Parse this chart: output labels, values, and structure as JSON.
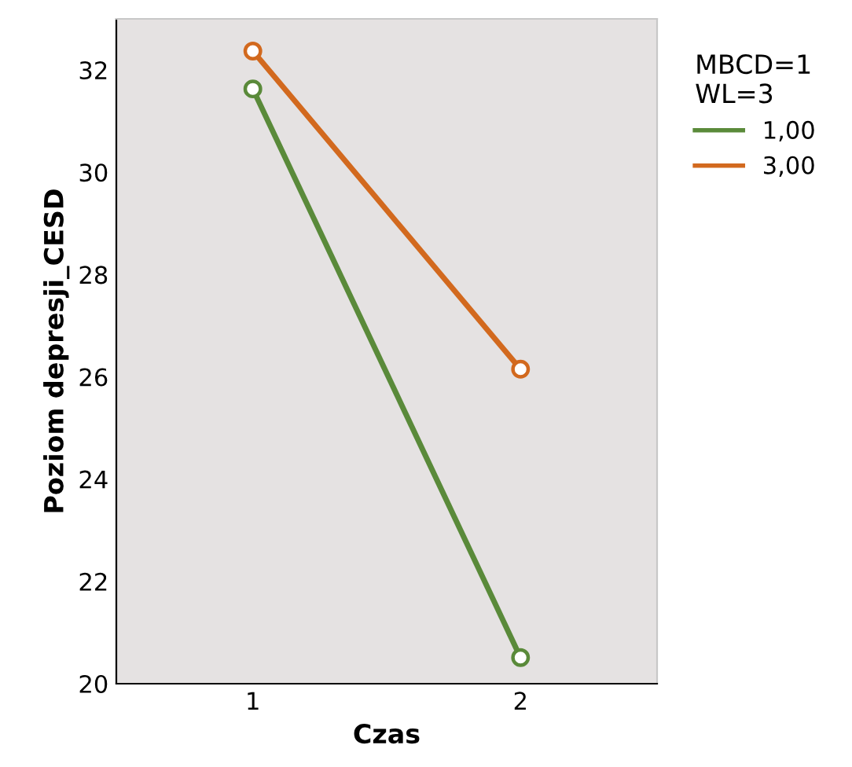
{
  "chart_data": {
    "type": "line",
    "xlabel": "Czas",
    "ylabel": "Poziom depresji_CESD",
    "legend_title": "MBCD=1\nWL=3",
    "categories": [
      "1",
      "2"
    ],
    "series": [
      {
        "name": "1,00",
        "color": "#5a8a3a",
        "values": [
          31.63,
          20.51
        ]
      },
      {
        "name": "3,00",
        "color": "#d2691e",
        "values": [
          32.37,
          26.15
        ]
      }
    ],
    "ylim": [
      20,
      33
    ],
    "yticks": [
      20,
      22,
      24,
      26,
      28,
      30,
      32
    ],
    "marker": "circle",
    "line_style": "solid",
    "legend": "right",
    "grid": false
  }
}
